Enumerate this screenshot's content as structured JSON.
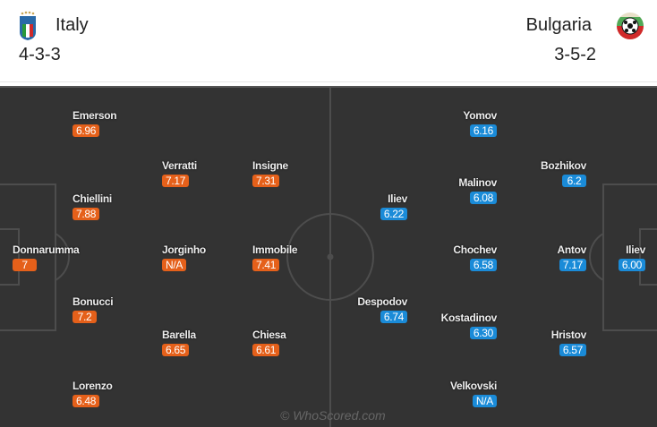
{
  "home": {
    "name": "Italy",
    "formation": "4-3-3",
    "crest_icon": "italy-crest-icon",
    "color": "#e5601a",
    "players": [
      {
        "name": "Emerson",
        "rating": "6.96"
      },
      {
        "name": "Verratti",
        "rating": "7.17"
      },
      {
        "name": "Insigne",
        "rating": "7.31"
      },
      {
        "name": "Chiellini",
        "rating": "7.88"
      },
      {
        "name": "Donnarumma",
        "rating": "7"
      },
      {
        "name": "Jorginho",
        "rating": "N/A"
      },
      {
        "name": "Immobile",
        "rating": "7.41"
      },
      {
        "name": "Bonucci",
        "rating": "7.2"
      },
      {
        "name": "Barella",
        "rating": "6.65"
      },
      {
        "name": "Chiesa",
        "rating": "6.61"
      },
      {
        "name": "Lorenzo",
        "rating": "6.48"
      }
    ]
  },
  "away": {
    "name": "Bulgaria",
    "formation": "3-5-2",
    "crest_icon": "bulgaria-crest-icon",
    "color": "#1a8bd8",
    "players": [
      {
        "name": "Yomov",
        "rating": "6.16"
      },
      {
        "name": "Bozhikov",
        "rating": "6.2"
      },
      {
        "name": "Malinov",
        "rating": "6.08"
      },
      {
        "name": "Iliev",
        "rating": "6.22"
      },
      {
        "name": "Chochev",
        "rating": "6.58"
      },
      {
        "name": "Antov",
        "rating": "7.17"
      },
      {
        "name": "Iliev",
        "rating": "6.00"
      },
      {
        "name": "Despodov",
        "rating": "6.74"
      },
      {
        "name": "Kostadinov",
        "rating": "6.30"
      },
      {
        "name": "Hristov",
        "rating": "6.57"
      },
      {
        "name": "Velkovski",
        "rating": "N/A"
      }
    ]
  },
  "watermark": "© WhoScored.com"
}
